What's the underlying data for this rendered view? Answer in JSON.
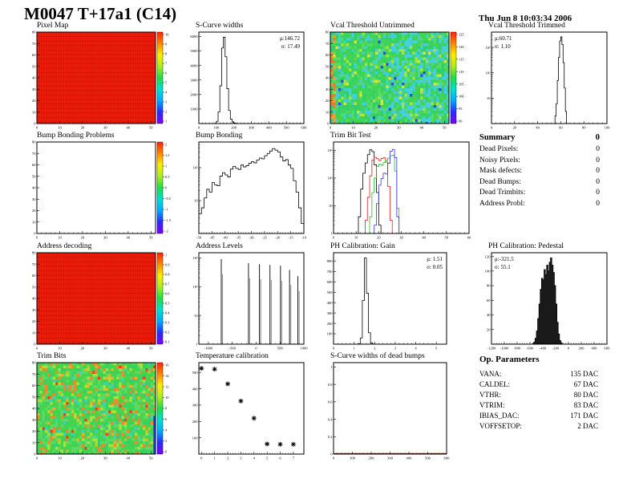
{
  "header": {
    "title": "M0047 T+17a1 (C14)",
    "date": "Thu Jun  8 10:03:34 2006"
  },
  "summary": {
    "title": "Summary",
    "total": "0",
    "rows": [
      {
        "label": "Dead Pixels:",
        "value": "0"
      },
      {
        "label": "Noisy Pixels:",
        "value": "0"
      },
      {
        "label": "Mask defects:",
        "value": "0"
      },
      {
        "label": "Dead Bumps:",
        "value": "0"
      },
      {
        "label": "Dead Trimbits:",
        "value": "0"
      },
      {
        "label": "Address Probl:",
        "value": "0"
      }
    ]
  },
  "op_parameters": {
    "title": "Op. Parameters",
    "rows": [
      {
        "label": "VANA:",
        "value": "135 DAC"
      },
      {
        "label": "CALDEL:",
        "value": "67 DAC"
      },
      {
        "label": "VTHR:",
        "value": "80 DAC"
      },
      {
        "label": "VTRIM:",
        "value": "83 DAC"
      },
      {
        "label": "IBIAS_DAC:",
        "value": "171 DAC"
      },
      {
        "label": "VOFFSETOP:",
        "value": "2 DAC"
      }
    ]
  },
  "colors": {
    "map_red": "#f11c09",
    "map_red_grid": "#bf1206",
    "dead_bump_baseline": "#cc1100",
    "trimbit_series": [
      "#000000",
      "#dd2222",
      "#22bb22",
      "#3333dd"
    ]
  },
  "chart_data": [
    {
      "type": "heatmap",
      "style": "solid-red",
      "title": "Pixel Map",
      "xlim": [
        0,
        52
      ],
      "ylim": [
        0,
        80
      ],
      "xticks": [
        0,
        10,
        20,
        30,
        40,
        50
      ],
      "yticks": [
        [
          0,
          "0"
        ],
        [
          10,
          "10"
        ],
        [
          20,
          "20"
        ],
        [
          30,
          "30"
        ],
        [
          40,
          "40"
        ],
        [
          50,
          "50"
        ],
        [
          60,
          "60"
        ],
        [
          70,
          "70"
        ],
        [
          80,
          "80"
        ]
      ],
      "fill": "#f11c09",
      "grid": "#bf1206",
      "colorbar": {
        "ticks": [
          "10",
          "9",
          "8",
          "7",
          "6",
          "5",
          "4",
          "3",
          "2",
          "1"
        ],
        "stops": [
          "#7d00ff",
          "#2a2aff",
          "#00aaff",
          "#00e0d0",
          "#22dd44",
          "#aaee22",
          "#ffee00",
          "#ff8800",
          "#ff2200"
        ]
      }
    },
    {
      "type": "hist",
      "title": "S-Curve widths",
      "yscale": "linear",
      "x0": 90,
      "dx": 10,
      "values": [
        20,
        150,
        800,
        2600,
        5200,
        5950,
        4600,
        2400,
        900,
        300,
        100,
        40,
        10
      ],
      "xlim": [
        0,
        600
      ],
      "ylim": [
        0,
        6300
      ],
      "xticks": [
        0,
        100,
        200,
        300,
        400,
        500,
        600
      ],
      "yticks": [
        [
          1000,
          "1000"
        ],
        [
          2000,
          "2000"
        ],
        [
          3000,
          "3000"
        ],
        [
          4000,
          "4000"
        ],
        [
          5000,
          "5000"
        ],
        [
          6000,
          "6000"
        ]
      ],
      "stats": {
        "mu": "μ:146.72",
        "sigma": "σ: 17.49",
        "side": "right"
      }
    },
    {
      "type": "heatmap",
      "style": "noise",
      "edge": "vcal",
      "seed": 11,
      "title": "Vcal Threshold Untrimmed",
      "xlim": [
        0,
        52
      ],
      "ylim": [
        0,
        80
      ],
      "xticks": [
        0,
        10,
        20,
        30,
        40,
        50
      ],
      "yticks": [
        [
          0,
          "0"
        ],
        [
          10,
          "10"
        ],
        [
          20,
          "20"
        ],
        [
          30,
          "30"
        ],
        [
          40,
          "40"
        ],
        [
          50,
          "50"
        ],
        [
          60,
          "60"
        ],
        [
          70,
          "70"
        ],
        [
          80,
          "80"
        ]
      ],
      "palette": [
        {
          "c": "#41d454",
          "w": 0.34
        },
        {
          "c": "#2ecf6e",
          "w": 0.22
        },
        {
          "c": "#57da60",
          "w": 0.14
        },
        {
          "c": "#3fd2cf",
          "w": 0.12
        },
        {
          "c": "#45c8e0",
          "w": 0.08
        },
        {
          "c": "#a8e33c",
          "w": 0.06
        },
        {
          "c": "#d8e830",
          "w": 0.02
        },
        {
          "c": "#2c52e0",
          "w": 0.02
        }
      ],
      "colorbar": {
        "ticks": [
          "125",
          "120",
          "115",
          "110",
          "105",
          "100",
          "95",
          "90"
        ],
        "stops": [
          "#7d00ff",
          "#2a2aff",
          "#00aaff",
          "#00e0d0",
          "#22dd44",
          "#aaee22",
          "#ffee00",
          "#ff8800",
          "#ff2200"
        ]
      }
    },
    {
      "type": "hist",
      "title": "Vcal Threshold Trimmed",
      "yscale": "log",
      "x0": 55,
      "dx": 1,
      "values": [
        2,
        6,
        50,
        400,
        1800,
        2600,
        1300,
        250,
        25,
        3
      ],
      "xlim": [
        0,
        100
      ],
      "ylim": [
        1,
        4000
      ],
      "xticks": [
        0,
        20,
        40,
        60,
        80,
        100
      ],
      "yticks": [
        [
          10,
          "10"
        ],
        [
          100,
          "10²"
        ],
        [
          1000,
          "10³"
        ]
      ],
      "stats": {
        "mu": "μ:60.71",
        "sigma": "σ: 1.10",
        "side": "left"
      }
    },
    {
      "type": "heatmap",
      "style": "empty",
      "title": "Bump Bonding Problems",
      "xlim": [
        0,
        52
      ],
      "ylim": [
        0,
        80
      ],
      "xticks": [
        0,
        10,
        20,
        30,
        40,
        50
      ],
      "yticks": [
        [
          0,
          "0"
        ],
        [
          10,
          "10"
        ],
        [
          20,
          "20"
        ],
        [
          30,
          "30"
        ],
        [
          40,
          "40"
        ],
        [
          50,
          "50"
        ],
        [
          60,
          "60"
        ],
        [
          70,
          "70"
        ],
        [
          80,
          "80"
        ]
      ],
      "colorbar": {
        "ticks": [
          "2",
          "1.5",
          "1",
          "0.5",
          "0",
          "-0.5",
          "-1",
          "-1.5",
          "-2"
        ],
        "stops": [
          "#7d00ff",
          "#2a2aff",
          "#00aaff",
          "#00e0d0",
          "#22dd44",
          "#aaee22",
          "#ffee00",
          "#ff8800",
          "#ff2200"
        ]
      }
    },
    {
      "type": "hist",
      "title": "Bump Bonding",
      "yscale": "log",
      "x0": -50,
      "dx": 1,
      "values": [
        4,
        6,
        12,
        22,
        18,
        35,
        30,
        28,
        55,
        70,
        60,
        52,
        90,
        110,
        95,
        88,
        120,
        105,
        115,
        135,
        150,
        140,
        170,
        195,
        185,
        230,
        270,
        320,
        380,
        340,
        300,
        210,
        160,
        175,
        120,
        95,
        40,
        18,
        6,
        2
      ],
      "xlim": [
        -50,
        -10
      ],
      "ylim": [
        1,
        600
      ],
      "xticks": [
        -50,
        -45,
        -40,
        -35,
        -30,
        -25,
        -20,
        -15,
        -10
      ],
      "yticks": [
        [
          10,
          "10"
        ],
        [
          100,
          "10²"
        ]
      ]
    },
    {
      "type": "multihist",
      "title": "Trim Bit Test",
      "yscale": "log",
      "xlim": [
        0,
        60
      ],
      "ylim": [
        1,
        2000
      ],
      "xticks": [
        0,
        10,
        20,
        30,
        40,
        50,
        60
      ],
      "yticks": [
        [
          1,
          "1"
        ],
        [
          10,
          "10"
        ],
        [
          100,
          "10²"
        ],
        [
          1000,
          "10³"
        ]
      ],
      "series": [
        {
          "name": "trim-bit-0",
          "color": "#000000",
          "x0": 10,
          "dx": 1,
          "values": [
            1,
            4,
            40,
            150,
            350,
            700,
            1050,
            900,
            300,
            30,
            2
          ]
        },
        {
          "name": "trim-bit-1",
          "color": "#dd2222",
          "x0": 13,
          "dx": 1,
          "values": [
            1,
            3,
            20,
            120,
            450,
            560,
            500,
            430,
            510,
            540,
            380,
            50,
            3
          ]
        },
        {
          "name": "trim-bit-2",
          "color": "#22bb22",
          "x0": 15,
          "dx": 1,
          "values": [
            1,
            4,
            30,
            100,
            260,
            310,
            290,
            360,
            430,
            520,
            640,
            660,
            180,
            8
          ]
        },
        {
          "name": "trim-bit-3",
          "color": "#3333dd",
          "x0": 17,
          "dx": 1,
          "values": [
            1,
            2,
            12,
            55,
            95,
            150,
            140,
            340,
            920,
            1080,
            550,
            4
          ]
        }
      ]
    },
    {
      "type": "heatmap",
      "style": "solid-red",
      "title": "Address decoding",
      "xlim": [
        0,
        52
      ],
      "ylim": [
        0,
        80
      ],
      "xticks": [
        0,
        10,
        20,
        30,
        40,
        50
      ],
      "yticks": [
        [
          0,
          "0"
        ],
        [
          10,
          "10"
        ],
        [
          20,
          "20"
        ],
        [
          30,
          "30"
        ],
        [
          40,
          "40"
        ],
        [
          50,
          "50"
        ],
        [
          60,
          "60"
        ],
        [
          70,
          "70"
        ],
        [
          80,
          "80"
        ]
      ],
      "fill": "#f11c09",
      "grid": "#bf1206",
      "colorbar": {
        "ticks": [
          "1",
          "0.9",
          "0.8",
          "0.7",
          "0.6",
          "0.5",
          "0.4",
          "0.3",
          "0.2",
          "0.1"
        ],
        "stops": [
          "#7d00ff",
          "#2a2aff",
          "#00aaff",
          "#00e0d0",
          "#22dd44",
          "#aaee22",
          "#ffee00",
          "#ff8800",
          "#ff2200"
        ]
      }
    },
    {
      "type": "spikes",
      "title": "Address Levels",
      "yscale": "log",
      "xlim": [
        -1200,
        1000
      ],
      "ylim": [
        1,
        1500
      ],
      "xticks": [
        -1000,
        -500,
        0,
        500,
        1000
      ],
      "yticks": [
        [
          1,
          "1"
        ],
        [
          10,
          "10"
        ],
        [
          100,
          "10²"
        ],
        [
          1000,
          "10³"
        ]
      ],
      "spikes": [
        [
          -730,
          900
        ],
        [
          -160,
          650
        ],
        [
          70,
          600
        ],
        [
          290,
          560
        ],
        [
          510,
          530
        ],
        [
          700,
          380
        ],
        [
          875,
          230
        ]
      ]
    },
    {
      "type": "hist",
      "title": "PH Calibration: Gain",
      "yscale": "linear",
      "x0": 1.2,
      "dx": 0.1,
      "values": [
        5,
        60,
        420,
        830,
        490,
        110,
        12,
        2
      ],
      "xlim": [
        0,
        5.5
      ],
      "ylim": [
        0,
        880
      ],
      "xticks": [
        0,
        1,
        2,
        3,
        4,
        5
      ],
      "yticks": [
        [
          100,
          "100"
        ],
        [
          200,
          "200"
        ],
        [
          300,
          "300"
        ],
        [
          400,
          "400"
        ],
        [
          500,
          "500"
        ],
        [
          600,
          "600"
        ],
        [
          700,
          "700"
        ],
        [
          800,
          "800"
        ]
      ],
      "stats": {
        "mu": "μ: 1.51",
        "sigma": "σ: 0.05",
        "side": "right"
      }
    },
    {
      "type": "hist",
      "title": "PH Calibration: Pedestal",
      "yscale": "linear",
      "fill": "#1a1a1a",
      "x0": -560,
      "dx": 20,
      "values": [
        1,
        3,
        8,
        18,
        35,
        55,
        75,
        90,
        88,
        102,
        95,
        108,
        100,
        112,
        118,
        108,
        98,
        80,
        55,
        30,
        14,
        5,
        2
      ],
      "xlim": [
        -1200,
        600
      ],
      "ylim": [
        0,
        125
      ],
      "xticks": [
        -1200,
        -1000,
        -800,
        -600,
        -400,
        -200,
        0,
        200,
        400,
        600
      ],
      "yticks": [
        [
          20,
          "20"
        ],
        [
          40,
          "40"
        ],
        [
          60,
          "60"
        ],
        [
          80,
          "80"
        ],
        [
          100,
          "100"
        ],
        [
          120,
          "120"
        ]
      ],
      "stats": {
        "mu": "μ:-321.5",
        "sigma": "σ: 55.1",
        "side": "left"
      }
    },
    {
      "type": "heatmap",
      "style": "noise",
      "edge": "trim",
      "seed": 29,
      "title": "Trim Bits",
      "xlim": [
        0,
        52
      ],
      "ylim": [
        0,
        80
      ],
      "xticks": [
        0,
        10,
        20,
        30,
        40,
        50
      ],
      "yticks": [
        [
          0,
          "0"
        ],
        [
          10,
          "10"
        ],
        [
          20,
          "20"
        ],
        [
          30,
          "30"
        ],
        [
          40,
          "40"
        ],
        [
          50,
          "50"
        ],
        [
          60,
          "60"
        ],
        [
          70,
          "70"
        ],
        [
          80,
          "80"
        ]
      ],
      "palette": [
        {
          "c": "#44d44c",
          "w": 0.4
        },
        {
          "c": "#5ada62",
          "w": 0.2
        },
        {
          "c": "#35cf6a",
          "w": 0.12
        },
        {
          "c": "#a9e03a",
          "w": 0.09
        },
        {
          "c": "#f0882c",
          "w": 0.1
        },
        {
          "c": "#e8b229",
          "w": 0.04
        },
        {
          "c": "#3ecfc0",
          "w": 0.04
        },
        {
          "c": "#f04020",
          "w": 0.01
        }
      ],
      "colorbar": {
        "ticks": [
          "16",
          "14",
          "12",
          "10",
          "8",
          "6",
          "4",
          "2",
          "0"
        ],
        "stops": [
          "#7d00ff",
          "#2a2aff",
          "#00aaff",
          "#00e0d0",
          "#22dd44",
          "#aaee22",
          "#ffee00",
          "#ff8800",
          "#ff2200"
        ]
      }
    },
    {
      "type": "scatter",
      "title": "Temperature calibration",
      "points": [
        [
          0,
          525
        ],
        [
          1,
          520
        ],
        [
          2,
          430
        ],
        [
          3,
          325
        ],
        [
          4,
          220
        ],
        [
          5,
          62
        ],
        [
          6,
          60
        ],
        [
          7,
          60
        ]
      ],
      "xlim": [
        -0.2,
        7.8
      ],
      "ylim": [
        0,
        560
      ],
      "xticks": [
        0,
        1,
        2,
        3,
        4,
        5,
        6,
        7
      ],
      "yticks": [
        [
          100,
          "100"
        ],
        [
          200,
          "200"
        ],
        [
          300,
          "300"
        ],
        [
          400,
          "400"
        ],
        [
          500,
          "500"
        ]
      ]
    },
    {
      "type": "empty",
      "title": "S-Curve widths of dead bumps",
      "xlim": [
        0,
        600
      ],
      "ylim": [
        0,
        1.05
      ],
      "xticks": [
        0,
        100,
        200,
        300,
        400,
        500,
        600
      ],
      "yticks": [
        [
          0,
          "0"
        ],
        [
          0.2,
          "0.2"
        ],
        [
          0.4,
          "0.4"
        ],
        [
          0.6,
          "0.6"
        ],
        [
          0.8,
          "0.8"
        ],
        [
          1,
          "1"
        ]
      ],
      "baseline": "#cc1100"
    }
  ]
}
